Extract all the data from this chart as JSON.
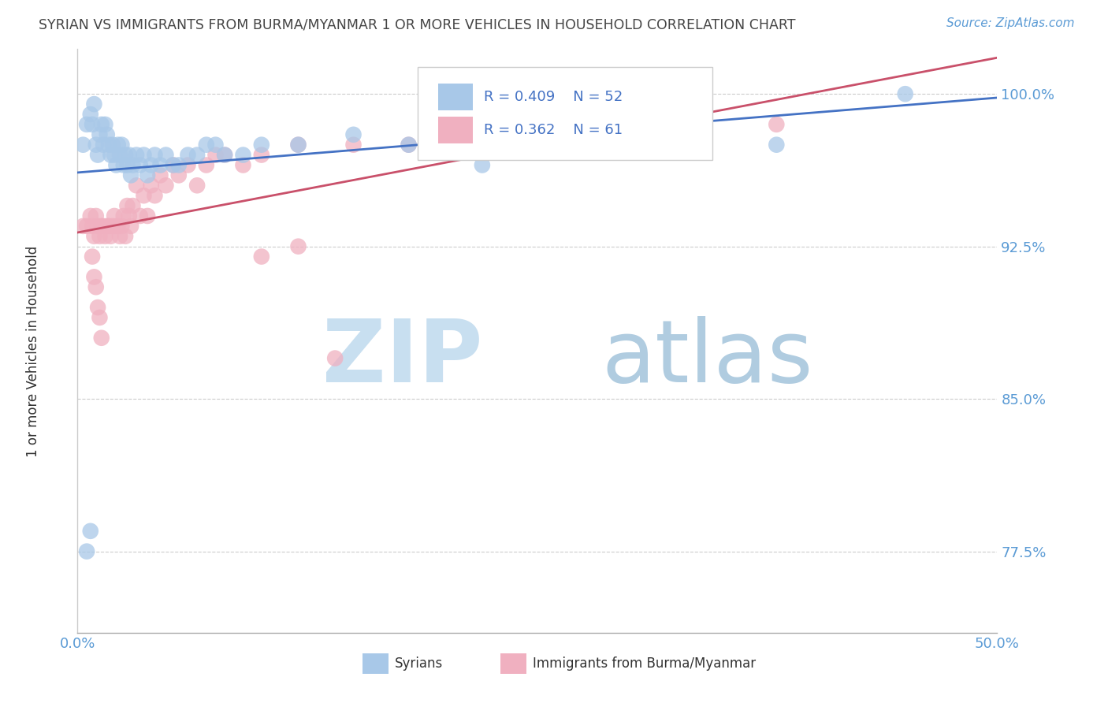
{
  "title": "SYRIAN VS IMMIGRANTS FROM BURMA/MYANMAR 1 OR MORE VEHICLES IN HOUSEHOLD CORRELATION CHART",
  "source": "Source: ZipAtlas.com",
  "ylabel": "1 or more Vehicles in Household",
  "xlim": [
    0.0,
    0.5
  ],
  "ylim": [
    0.735,
    1.022
  ],
  "yticks": [
    0.775,
    0.85,
    0.925,
    1.0
  ],
  "ytick_labels": [
    "77.5%",
    "85.0%",
    "92.5%",
    "100.0%"
  ],
  "xticks": [
    0.0,
    0.1,
    0.2,
    0.3,
    0.4,
    0.5
  ],
  "xtick_labels": [
    "0.0%",
    "",
    "",
    "",
    "",
    "50.0%"
  ],
  "blue_R": 0.409,
  "blue_N": 52,
  "pink_R": 0.362,
  "pink_N": 61,
  "blue_color": "#a8c8e8",
  "pink_color": "#f0b0c0",
  "blue_line_color": "#4472c4",
  "pink_line_color": "#c9506a",
  "watermark_zip_color": "#c8dff0",
  "watermark_atlas_color": "#b0cce0",
  "title_color": "#444444",
  "axis_label_color": "#5b9bd5",
  "legend_R_color": "#4472c4",
  "syrians_x": [
    0.003,
    0.005,
    0.007,
    0.008,
    0.009,
    0.01,
    0.011,
    0.012,
    0.013,
    0.014,
    0.015,
    0.016,
    0.017,
    0.018,
    0.019,
    0.02,
    0.021,
    0.022,
    0.023,
    0.024,
    0.025,
    0.026,
    0.027,
    0.028,
    0.029,
    0.03,
    0.032,
    0.034,
    0.036,
    0.038,
    0.04,
    0.042,
    0.045,
    0.048,
    0.052,
    0.055,
    0.06,
    0.065,
    0.07,
    0.075,
    0.08,
    0.09,
    0.1,
    0.12,
    0.15,
    0.18,
    0.22,
    0.27,
    0.38,
    0.45,
    0.005,
    0.007
  ],
  "syrians_y": [
    0.975,
    0.985,
    0.99,
    0.985,
    0.995,
    0.975,
    0.97,
    0.98,
    0.985,
    0.975,
    0.985,
    0.98,
    0.975,
    0.97,
    0.975,
    0.97,
    0.965,
    0.975,
    0.97,
    0.975,
    0.965,
    0.97,
    0.965,
    0.97,
    0.96,
    0.965,
    0.97,
    0.965,
    0.97,
    0.96,
    0.965,
    0.97,
    0.965,
    0.97,
    0.965,
    0.965,
    0.97,
    0.97,
    0.975,
    0.975,
    0.97,
    0.97,
    0.975,
    0.975,
    0.98,
    0.975,
    0.965,
    0.975,
    0.975,
    1.0,
    0.775,
    0.785
  ],
  "burma_x": [
    0.003,
    0.005,
    0.007,
    0.008,
    0.009,
    0.01,
    0.011,
    0.012,
    0.013,
    0.014,
    0.015,
    0.016,
    0.017,
    0.018,
    0.019,
    0.02,
    0.021,
    0.022,
    0.023,
    0.024,
    0.025,
    0.026,
    0.027,
    0.028,
    0.029,
    0.03,
    0.032,
    0.034,
    0.036,
    0.038,
    0.04,
    0.042,
    0.045,
    0.048,
    0.052,
    0.055,
    0.06,
    0.065,
    0.07,
    0.075,
    0.08,
    0.09,
    0.1,
    0.12,
    0.15,
    0.18,
    0.22,
    0.27,
    0.29,
    0.32,
    0.38,
    0.1,
    0.12,
    0.14,
    0.008,
    0.009,
    0.01,
    0.011,
    0.012,
    0.013,
    0.32
  ],
  "burma_y": [
    0.935,
    0.935,
    0.94,
    0.935,
    0.93,
    0.94,
    0.935,
    0.93,
    0.935,
    0.935,
    0.93,
    0.935,
    0.935,
    0.93,
    0.935,
    0.94,
    0.935,
    0.935,
    0.93,
    0.935,
    0.94,
    0.93,
    0.945,
    0.94,
    0.935,
    0.945,
    0.955,
    0.94,
    0.95,
    0.94,
    0.955,
    0.95,
    0.96,
    0.955,
    0.965,
    0.96,
    0.965,
    0.955,
    0.965,
    0.97,
    0.97,
    0.965,
    0.97,
    0.975,
    0.975,
    0.975,
    0.975,
    0.98,
    0.98,
    0.985,
    0.985,
    0.92,
    0.925,
    0.87,
    0.92,
    0.91,
    0.905,
    0.895,
    0.89,
    0.88,
    0.985
  ]
}
